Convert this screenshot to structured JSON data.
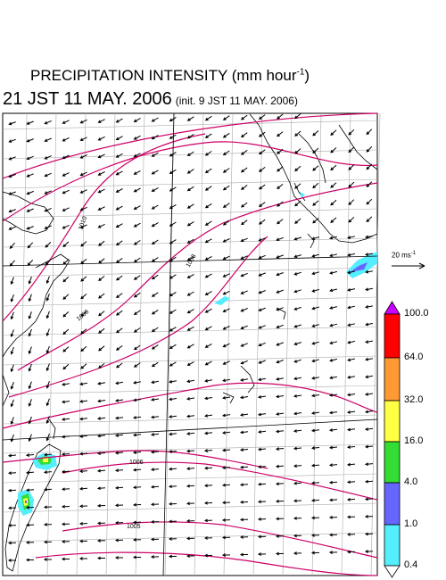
{
  "header": {
    "title": "PRECIPITATION INTENSITY (mm hour",
    "title_unit_exp": "-1",
    "title_close": ")",
    "valid_time": "21 JST 11 MAY. 2006",
    "init_text": "(init. 9 JST 11 MAY. 2006)"
  },
  "wind_scale": {
    "speed": "20 ms",
    "exp": "-1"
  },
  "colorbar": {
    "levels": [
      "100.0",
      "64.0",
      "32.0",
      "16.0",
      "4.0",
      "1.0",
      "0.4"
    ],
    "colors": [
      "#cc00ff",
      "#ff0000",
      "#ff9933",
      "#ffff44",
      "#33dd33",
      "#6666ff",
      "#55eeff"
    ]
  },
  "isobar_labels": [
    "1010",
    "1008",
    "1008",
    "1006",
    "1005"
  ],
  "colors": {
    "isobar": "#cc0066",
    "grid": "#888888",
    "coast": "#000000"
  }
}
